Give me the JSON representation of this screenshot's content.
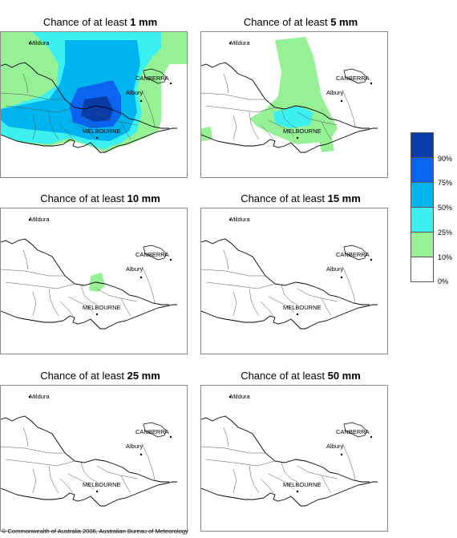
{
  "panels": [
    {
      "title_prefix": "Chance of at least ",
      "threshold": "1 mm"
    },
    {
      "title_prefix": "Chance of at least ",
      "threshold": "5 mm"
    },
    {
      "title_prefix": "Chance of at least ",
      "threshold": "10 mm"
    },
    {
      "title_prefix": "Chance of at least ",
      "threshold": "15 mm"
    },
    {
      "title_prefix": "Chance of at least ",
      "threshold": "25 mm"
    },
    {
      "title_prefix": "Chance of at least ",
      "threshold": "50 mm"
    }
  ],
  "places": {
    "mildura": "Mildura",
    "canberra": "CANBERRA",
    "albury": "Albury",
    "melbourne": "MELBOURNE"
  },
  "legend": {
    "bins": [
      {
        "label": "90%",
        "color": "#0a3ca8"
      },
      {
        "label": "75%",
        "color": "#0a64f0"
      },
      {
        "label": "50%",
        "color": "#00b4f0"
      },
      {
        "label": "25%",
        "color": "#3cf0f0"
      },
      {
        "label": "10%",
        "color": "#96f096"
      },
      {
        "label": "0%",
        "color": "#ffffff"
      }
    ]
  },
  "copyright": "© Commonwealth of Australia 2006, Australian Bureau of Meteorology"
}
